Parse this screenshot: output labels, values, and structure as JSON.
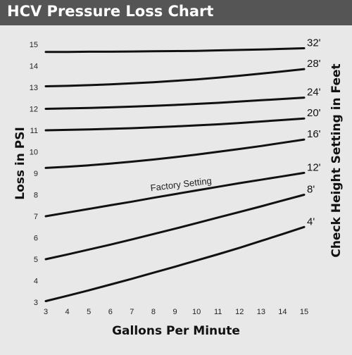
{
  "title": "HCV Pressure Loss Chart",
  "chart_data": {
    "type": "line",
    "title": "HCV Pressure Loss Chart",
    "xlabel": "Gallons Per Minute",
    "ylabel": "Loss in PSI",
    "y2label": "Check Height Setting in Feet",
    "xlim": [
      3,
      15
    ],
    "ylim": [
      3,
      15
    ],
    "x_ticks": [
      3,
      4,
      5,
      6,
      7,
      8,
      9,
      10,
      11,
      12,
      13,
      14,
      15
    ],
    "y_ticks": [
      3,
      4,
      5,
      6,
      7,
      8,
      9,
      10,
      11,
      12,
      13,
      14,
      15
    ],
    "grid": false,
    "x": [
      3,
      4,
      5,
      6,
      7,
      8,
      9,
      10,
      11,
      12,
      13,
      14,
      15
    ],
    "series": [
      {
        "name": "32'",
        "values": [
          14.65,
          14.65,
          14.66,
          14.66,
          14.67,
          14.68,
          14.69,
          14.7,
          14.72,
          14.74,
          14.76,
          14.79,
          14.82
        ]
      },
      {
        "name": "28'",
        "values": [
          13.05,
          13.07,
          13.1,
          13.14,
          13.19,
          13.24,
          13.3,
          13.37,
          13.45,
          13.54,
          13.64,
          13.74,
          13.85
        ]
      },
      {
        "name": "24'",
        "values": [
          12.0,
          12.02,
          12.04,
          12.07,
          12.1,
          12.14,
          12.18,
          12.23,
          12.28,
          12.34,
          12.4,
          12.46,
          12.52
        ]
      },
      {
        "name": "20'",
        "values": [
          11.0,
          11.02,
          11.04,
          11.07,
          11.1,
          11.14,
          11.18,
          11.23,
          11.28,
          11.34,
          11.41,
          11.48,
          11.55
        ]
      },
      {
        "name": "16'",
        "values": [
          9.25,
          9.3,
          9.37,
          9.45,
          9.54,
          9.64,
          9.75,
          9.87,
          10.0,
          10.13,
          10.27,
          10.42,
          10.57
        ]
      },
      {
        "name": "12'",
        "values": [
          7.0,
          7.17,
          7.34,
          7.51,
          7.68,
          7.86,
          8.03,
          8.2,
          8.37,
          8.54,
          8.7,
          8.86,
          9.02
        ]
      },
      {
        "name": "8'",
        "values": [
          5.0,
          5.22,
          5.45,
          5.68,
          5.92,
          6.17,
          6.42,
          6.68,
          6.94,
          7.2,
          7.46,
          7.73,
          8.0
        ]
      },
      {
        "name": "4'",
        "values": [
          3.05,
          3.3,
          3.55,
          3.82,
          4.09,
          4.37,
          4.65,
          4.94,
          5.23,
          5.53,
          5.85,
          6.17,
          6.5
        ]
      }
    ],
    "annotations": [
      {
        "text": "Factory Setting",
        "series": "12'"
      }
    ]
  }
}
